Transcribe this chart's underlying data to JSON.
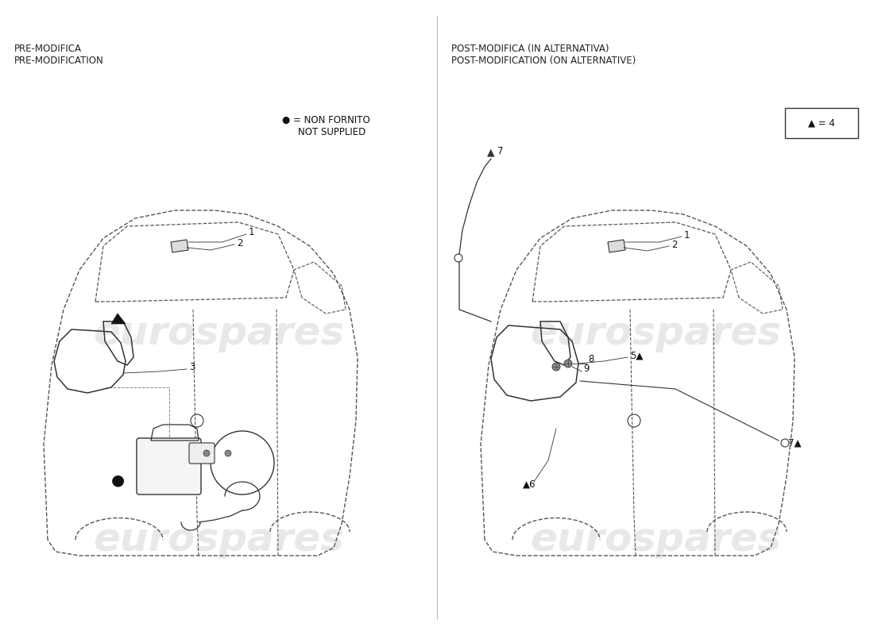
{
  "bg_color": "#ffffff",
  "left_header": [
    "PRE-MODIFICA",
    "PRE-MODIFICATION"
  ],
  "right_header": [
    "POST-MODIFICA (IN ALTERNATIVA)",
    "POST-MODIFICATION (ON ALTERNATIVE)"
  ],
  "legend_text1": "● = NON FORNITO",
  "legend_text2": "NOT SUPPLIED",
  "triangle_box_text": "▲ = 4",
  "watermark_text": "eurospares",
  "watermark_color": "#cccccc",
  "line_color": "#555555",
  "dark_line": "#333333",
  "header_fontsize": 8.5,
  "label_fontsize": 8.5
}
